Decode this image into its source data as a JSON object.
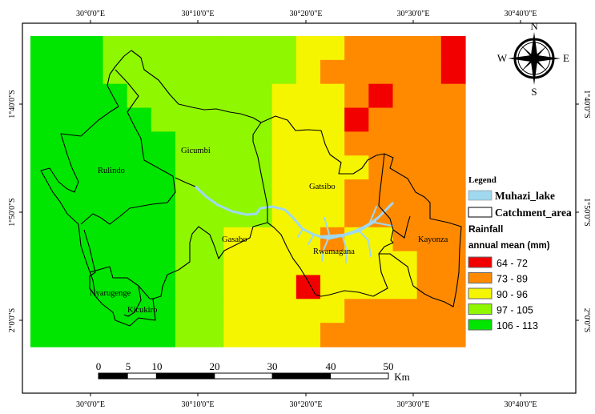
{
  "axes": {
    "top_labels": [
      "30°0'0\"E",
      "30°10'0\"E",
      "30°20'0\"E",
      "30°30'0\"E",
      "30°40'0\"E"
    ],
    "bottom_labels": [
      "30°0'0\"E",
      "30°10'0\"E",
      "30°20'0\"E",
      "30°30'0\"E",
      "30°40'0\"E"
    ],
    "left_labels": [
      "1°40'0\"S",
      "1°50'0\"S",
      "2°0'0\"S"
    ],
    "right_labels": [
      "1°40'0\"S",
      "1°50'0\"S",
      "2°0'0\"S"
    ]
  },
  "compass": {
    "n": "N",
    "e": "E",
    "s": "S",
    "w": "W"
  },
  "districts": [
    "Rulindo",
    "Gicumbi",
    "Gatsibo",
    "Gasabo",
    "Rwamagana",
    "Kayonza",
    "Nyarugenge",
    "Kicukiro"
  ],
  "legend": {
    "title": "Legend",
    "lake_label": "Muhazi_lake",
    "lake_color": "#9fd8ef",
    "catchment_label": "Catchment_area",
    "rainfall_title": "Rainfall",
    "rainfall_subtitle": "annual mean (mm)",
    "classes": [
      {
        "label": "64 - 72",
        "color": "#f20000"
      },
      {
        "label": "73 - 89",
        "color": "#ff8a00"
      },
      {
        "label": "90 - 96",
        "color": "#f5f500"
      },
      {
        "label": "97 - 105",
        "color": "#8ff700"
      },
      {
        "label": "106 - 113",
        "color": "#00e600"
      }
    ]
  },
  "raster_classes_note_key": "R=64-72, O=73-89, Y=90-96, L=97-105, G=106-113",
  "raster": [
    "GGGLLLLLLLLYYOOOOR",
    "GGGLLLLLLLLYOOOOOR",
    "GGGGLLLLLLYYYORO OO",
    "GGGGGLLLLLYYYROOOO",
    "GGGGGGLLLLYYYOOOOO",
    "GGGGGGLLLLYYYYOOOO",
    "GGGGGGLLLLYYYOOOOO",
    "GGGGGGLLLLYYYOOOOO",
    "GGGGGGLLYYYYOYYOOO",
    "GGGGGGLLYYYYYYYYOO",
    "GGGGGGLLYYYRYYYYOO",
    "GGGGGGLLYYYYYOOOOO",
    "GGGGGGLLYYYYOOOOOO"
  ],
  "scalebar": {
    "ticks": [
      "0",
      "5",
      "10",
      "20",
      "30",
      "40",
      "50"
    ],
    "unit": "Km"
  }
}
